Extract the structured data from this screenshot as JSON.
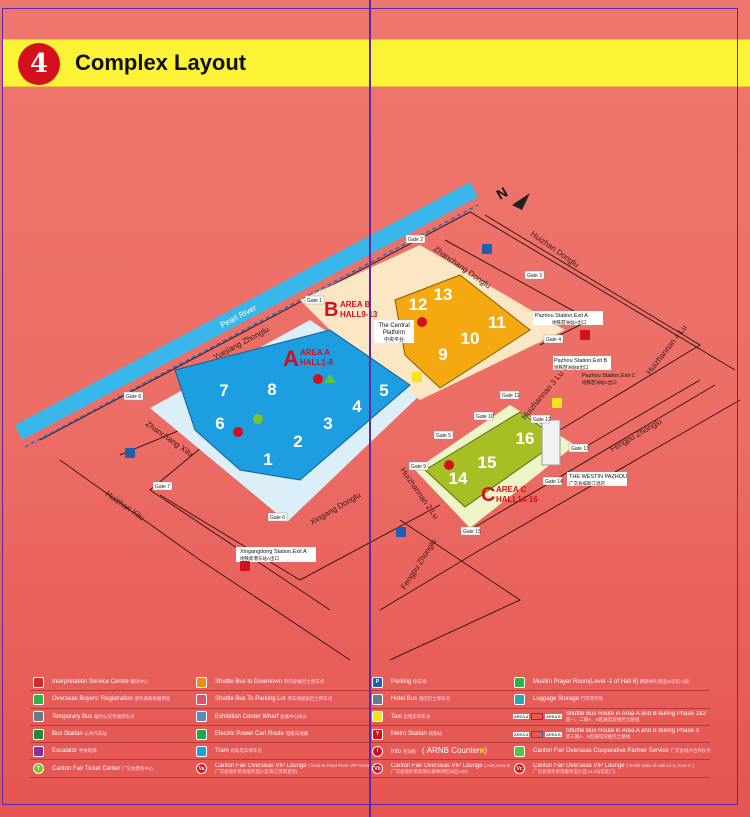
{
  "header": {
    "number": "4",
    "title": "Complex Layout"
  },
  "colors": {
    "background": "#ec6e66",
    "band": "#fcf236",
    "area_a": "#1d9ee0",
    "area_b": "#f3a90f",
    "area_c": "#a7bf25",
    "river": "#3ab7ea",
    "frame": "#5a2aa8"
  },
  "map": {
    "compass": "N",
    "river": "Pearl River",
    "areas": [
      {
        "letter": "A",
        "name": "AREA A",
        "halls": "HALL1-8"
      },
      {
        "letter": "B",
        "name": "AREA B",
        "halls": "HALL9-13"
      },
      {
        "letter": "C",
        "name": "AREA C",
        "halls": "HALL14-16"
      }
    ],
    "halls": [
      "1",
      "2",
      "3",
      "4",
      "5",
      "6",
      "7",
      "8",
      "9",
      "10",
      "11",
      "12",
      "13",
      "14",
      "15",
      "16"
    ],
    "gates": [
      "Gate 1",
      "Gate 2",
      "Gate 3",
      "Gate 4",
      "Gate 5",
      "Gate 6",
      "Gate 7",
      "Gate 8",
      "Gate 9",
      "Gate 10",
      "Gate 11",
      "Gate 12",
      "Gate 13",
      "Gate 14",
      "Gate 15"
    ],
    "roads": [
      "Yuejiang Zhonglu",
      "Zhanchang Xilu",
      "Huizhan Xilu",
      "Xingang Donglu",
      "Zhanchang Donglu",
      "Huizhan Donglu",
      "Huizhannan 4 Lu",
      "Huizhannan 3 Lu",
      "Huizhannan 2 Lu",
      "Fengpu Zhonglu",
      "Fengpu Zhonglu"
    ],
    "central_platform": [
      "The Central",
      "Platform",
      "中央平台"
    ],
    "stations": [
      {
        "name": "Pazhou Station,Exit A",
        "cn": "地铁琶洲站A出口"
      },
      {
        "name": "Pazhou Station,Exit B",
        "cn": "地铁琶洲站B出口"
      },
      {
        "name": "Pazhou Station,Exit C",
        "cn": "地铁琶洲站C出口"
      },
      {
        "name": "Xingangdong Station,Exit A",
        "cn": "地铁新港东站A出口"
      }
    ],
    "hotel": {
      "name": "THE WESTIN PAZHOU",
      "cn": "广交会威斯汀酒店"
    }
  },
  "legend": {
    "col1": [
      {
        "icon": "interpretation-icon",
        "color": "#d32a2a",
        "label": "Interpretation Service Centre",
        "cn": "翻译中心"
      },
      {
        "icon": "registration-icon",
        "color": "#2fb34a",
        "label": "Overseas Buyers' Registration",
        "cn": "境外采购商报到处"
      },
      {
        "icon": "temporary-bus-icon",
        "color": "#6d7a86",
        "label": "Temporary Bus",
        "cn": "临时公交专线停车点"
      },
      {
        "icon": "bus-station-icon",
        "color": "#1e8a3c",
        "label": "Bus Station",
        "cn": "公共汽车站"
      },
      {
        "icon": "escalator-icon",
        "color": "#8e2ca0",
        "label": "Escalator",
        "cn": "手扶电梯"
      },
      {
        "icon": "ticket-center-icon",
        "color": "#7cc42c",
        "label": "Canton Fair Ticket Center",
        "cn": "广交会票务中心",
        "glyph": "T"
      }
    ],
    "col2": [
      {
        "icon": "shuttle-downtown-icon",
        "color": "#f08a1c",
        "label": "Shuttle Bus to Downtown",
        "cn": "市内穿梭巴士停车点"
      },
      {
        "icon": "shuttle-parking-icon",
        "color": "#e0506a",
        "label": "Shuttle Bus To Parking Lot",
        "cn": "停车场接驳巴士停车点"
      },
      {
        "icon": "wharf-icon",
        "color": "#5a8ab8",
        "label": "Exhibition Center Wharf",
        "cn": "会展中心码头"
      },
      {
        "icon": "cart-route-icon",
        "color": "#1aa84a",
        "label": "Electric Power Cart Route",
        "cn": "电瓶车线路"
      },
      {
        "icon": "tram-icon",
        "color": "#1d9ee0",
        "label": "Tram",
        "cn": "有轨电车停车点"
      },
      {
        "icon": "vip-lounge-a-icon",
        "color": "#d4101d",
        "label": "Canton Fair Overseas VIP Lounge",
        "note": "( Next to Pearl River VIP Room, Area A )",
        "cn": "广交会境外贵宾服务室(A区珠江贵宾室旁)",
        "glyph": "Va"
      }
    ],
    "col3": [
      {
        "icon": "parking-icon",
        "color": "#1f5fb0",
        "label": "Parking",
        "cn": "停车场",
        "glyph": "P"
      },
      {
        "icon": "hotel-bus-icon",
        "color": "#6d7a86",
        "label": "Hotel Bus",
        "cn": "酒店巴士停车点"
      },
      {
        "icon": "taxi-icon",
        "color": "#f5e41a",
        "label": "Taxi",
        "cn": "出租车停车点"
      },
      {
        "icon": "metro-icon",
        "color": "#d4101d",
        "label": "Metro Station",
        "cn": "地铁站",
        "glyph": "Y"
      },
      {
        "icon": "info-icon",
        "color": "#d4101d",
        "label": "Info",
        "cn": "咨询处",
        "extra": "( ARNB Counter",
        "extra_end": ")",
        "glyph": "I"
      },
      {
        "icon": "vip-lounge-b-icon",
        "color": "#d4101d",
        "label": "Canton Fair Overseas VIP Lounge",
        "note": "( A20,Area B )",
        "cn": "广交会境外贵宾俱乐部休闲区(B区A20)",
        "glyph": "Vb"
      }
    ],
    "col4": [
      {
        "icon": "prayer-room-icon",
        "color": "#2fb34a",
        "label": "Muslim Prayer Room(Level -1 of Hall 6)",
        "cn": "穆斯林礼拜室(6号馆-1层)"
      },
      {
        "icon": "luggage-icon",
        "color": "#2aa9a9",
        "label": "Luggage Storage",
        "cn": "行李寄存处"
      },
      {
        "icon": "shuttle-route-phase12-icon",
        "color": "#d4101d",
        "label": "Shuttle Bus Route in Area A and B during Phase 1&2",
        "cn": "第一、二期A、B区展馆穿梭巴士路线",
        "tag_a": "AREA A",
        "tag_b": "AREA B"
      },
      {
        "icon": "shuttle-route-phase3-icon",
        "color": "#1f5fb0",
        "label": "Shuttle Bus Route in Area A and B during Phase 3",
        "cn": "第三期A、B区展馆穿梭巴士路线",
        "tag_a": "AREA A",
        "tag_b": "AREA B"
      },
      {
        "icon": "partner-service-icon",
        "color": "#5cc43a",
        "label": "Canton Fair Overseas Cooperative Partner Service",
        "cn": "广交会境外合作伙伴服务中心"
      },
      {
        "icon": "vip-lounge-c-icon",
        "color": "#d4101d",
        "label": "Canton Fair Overseas VIP Lounge",
        "note": "( North Gate of Hall 14.3, Area C )",
        "cn": "广交会境外贵宾服务室(C区14.3号馆北门)",
        "glyph": "Vc"
      }
    ]
  }
}
